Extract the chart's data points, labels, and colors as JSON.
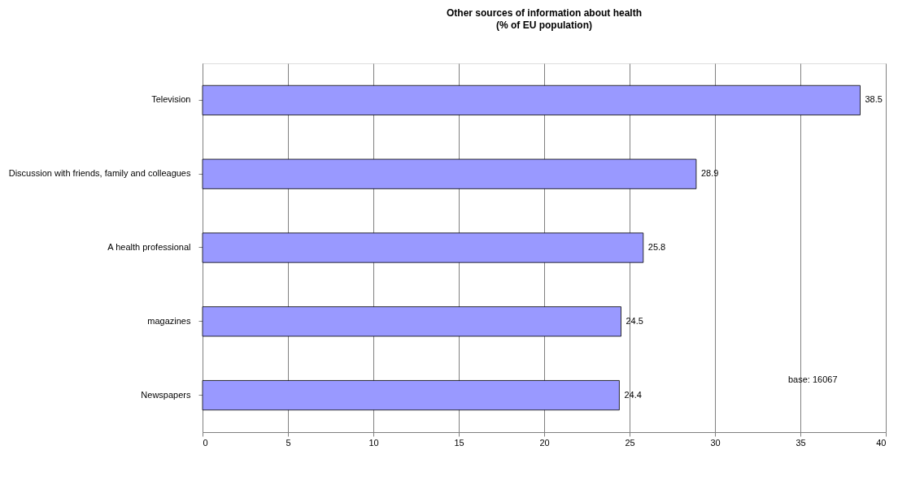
{
  "chart_data": {
    "type": "bar",
    "orientation": "horizontal",
    "title": "Other sources of information about health",
    "subtitle": "(% of EU population)",
    "categories": [
      "Television",
      "Discussion with friends, family and colleagues",
      "A health professional",
      "magazines",
      "Newspapers"
    ],
    "values": [
      38.5,
      28.9,
      25.8,
      24.5,
      24.4
    ],
    "color": "#9999ff",
    "xlim": [
      0,
      40
    ],
    "xticks": [
      0,
      5,
      10,
      15,
      20,
      25,
      30,
      35,
      40
    ],
    "grid": "x",
    "data_labels": true,
    "annotations": [
      "base: 16067"
    ]
  }
}
